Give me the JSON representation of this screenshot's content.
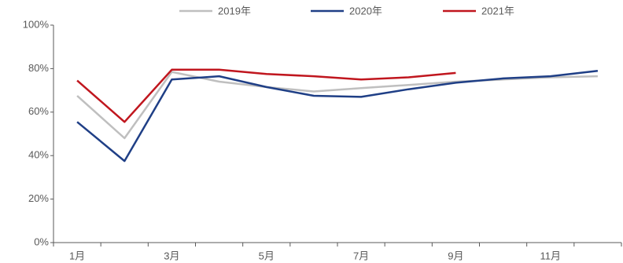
{
  "chart_data": {
    "type": "line",
    "categories": [
      "1月",
      null,
      "3月",
      null,
      "5月",
      null,
      "7月",
      null,
      "9月",
      null,
      "11月",
      null
    ],
    "series": [
      {
        "name": "2019年",
        "color": "#bfbfbf",
        "values": [
          67.5,
          48,
          78.5,
          74,
          71.5,
          69.5,
          71,
          72.5,
          74,
          75,
          76,
          76.5
        ]
      },
      {
        "name": "2020年",
        "color": "#1f3f86",
        "values": [
          55.5,
          37.5,
          75,
          76.5,
          71.5,
          67.5,
          67,
          70.5,
          73.5,
          75.5,
          76.5,
          79
        ]
      },
      {
        "name": "2021年",
        "color": "#c0161e",
        "values": [
          74.5,
          55.5,
          79.5,
          79.5,
          77.5,
          76.5,
          75,
          76,
          78,
          null,
          null,
          null
        ]
      }
    ],
    "ylim": [
      0,
      100
    ],
    "yticks": [
      {
        "value": 0,
        "label": "0%"
      },
      {
        "value": 20,
        "label": "20%"
      },
      {
        "value": 40,
        "label": "40%"
      },
      {
        "value": 60,
        "label": "60%"
      },
      {
        "value": 80,
        "label": "80%"
      },
      {
        "value": 100,
        "label": "100%"
      }
    ],
    "grid": false,
    "legend": "top"
  }
}
